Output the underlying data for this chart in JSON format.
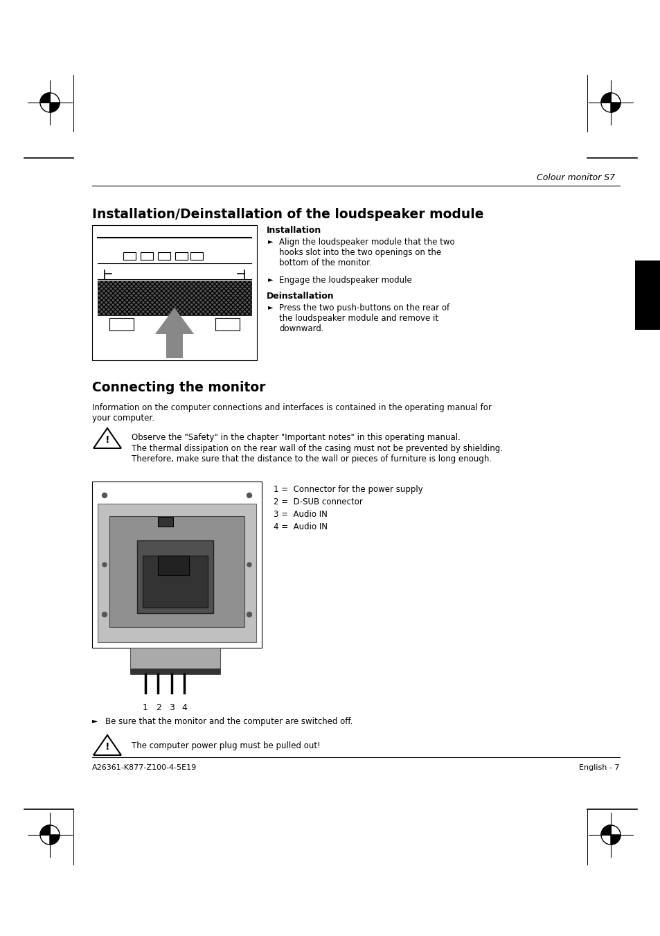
{
  "page_bg": "#ffffff",
  "header_text": "Colour monitor S7",
  "section1_title": "Installation/Deinstallation of the loudspeaker module",
  "install_label": "Installation",
  "install_bullet1": "Align the loudspeaker module that the two\nhooks slot into the two openings on the\nbottom of the monitor.",
  "install_bullet2": "Engage the loudspeaker module",
  "deinstall_label": "Deinstallation",
  "deinstall_bullet1": "Press the two push-buttons on the rear of\nthe loudspeaker module and remove it\ndownward.",
  "section2_title": "Connecting the monitor",
  "connect_intro": "Information on the computer connections and interfaces is contained in the operating manual for\nyour computer.",
  "warning1_line1": "Observe the \"Safety\" in the chapter \"Important notes\" in this operating manual.",
  "warning1_line2": "The thermal dissipation on the rear wall of the casing must not be prevented by shielding.\nTherefore, make sure that the distance to the wall or pieces of furniture is long enough.",
  "connector_labels": [
    "1 =  Connector for the power supply",
    "2 =  D-SUB connector",
    "3 =  Audio IN",
    "4 =  Audio IN"
  ],
  "bullet_final": "Be sure that the monitor and the computer are switched off.",
  "warning2": "The computer power plug must be pulled out!",
  "footer_left": "A26361-K877-Z100-4-5E19",
  "footer_right": "English - 7"
}
